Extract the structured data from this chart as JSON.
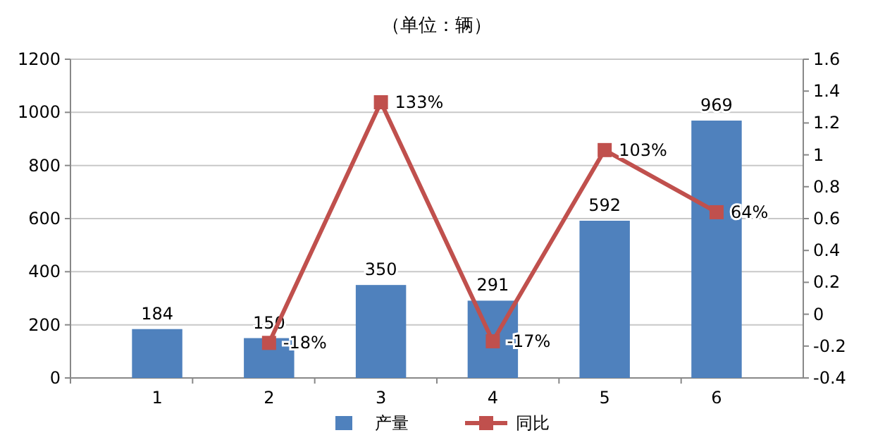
{
  "chart_data": {
    "type": "bar",
    "subtitle": "（单位：辆）",
    "categories": [
      "1",
      "2",
      "3",
      "4",
      "5",
      "6"
    ],
    "series": [
      {
        "name": "产量",
        "color": "#4f81bd",
        "values": [
          184,
          150,
          350,
          291,
          592,
          969
        ],
        "value_labels": [
          "184",
          "150",
          "350",
          "291",
          "592",
          "969"
        ]
      },
      {
        "name": "同比",
        "type": "line",
        "axis": "y2",
        "color": "#c0504d",
        "marker": "square",
        "values": [
          null,
          -0.18,
          1.33,
          -0.17,
          1.03,
          0.64
        ],
        "value_labels": [
          null,
          "-18%",
          "133%",
          "-17%",
          "103%",
          "64%"
        ]
      }
    ],
    "ylim": [
      0,
      1200
    ],
    "yticks": [
      0,
      200,
      400,
      600,
      800,
      1000,
      1200
    ],
    "y2lim": [
      -0.4,
      1.6
    ],
    "y2ticks": [
      {
        "value": -0.4,
        "label": "-0.4"
      },
      {
        "value": -0.2,
        "label": "-0.2"
      },
      0,
      {
        "value": 0.2,
        "label": "0.2"
      },
      {
        "value": 0.4,
        "label": "0.4"
      },
      {
        "value": 0.6,
        "label": "0.6"
      },
      {
        "value": 0.8,
        "label": "0.8"
      },
      1,
      {
        "value": 1.2,
        "label": "1.2"
      },
      {
        "value": 1.4,
        "label": "1.4"
      },
      {
        "value": 1.6,
        "label": "1.6"
      }
    ],
    "grid": "y",
    "legend": "bottom"
  }
}
